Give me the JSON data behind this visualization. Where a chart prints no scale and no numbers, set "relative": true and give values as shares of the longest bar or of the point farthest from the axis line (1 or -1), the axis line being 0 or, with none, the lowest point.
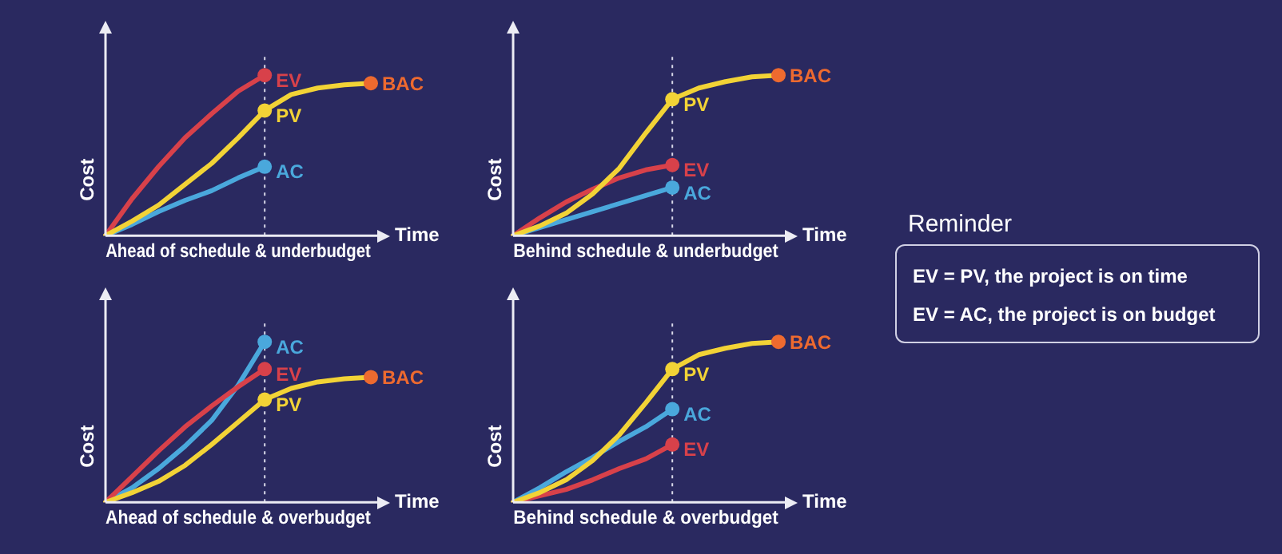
{
  "chart_data": [
    {
      "type": "line",
      "title": "Ahead of schedule & underbudget",
      "xlabel": "Time",
      "ylabel": "Cost",
      "relative": true,
      "categories": [
        null,
        null,
        null,
        null,
        null,
        null,
        null,
        null,
        null,
        null,
        null
      ],
      "annotations": [
        "BAC"
      ],
      "series": [
        {
          "name": "PV",
          "color": "#f2d336",
          "values": [
            0,
            0.09,
            0.19,
            0.32,
            0.45,
            0.61,
            0.78,
            0.88,
            0.92,
            0.94,
            0.95
          ]
        },
        {
          "name": "EV",
          "color": "#d8414a",
          "values": [
            0,
            0.23,
            0.43,
            0.61,
            0.76,
            0.9,
            1,
            null,
            null,
            null,
            null
          ]
        },
        {
          "name": "AC",
          "color": "#4aa8dc",
          "values": [
            0,
            0.07,
            0.15,
            0.22,
            0.28,
            0.36,
            0.43,
            null,
            null,
            null,
            null
          ]
        }
      ]
    },
    {
      "type": "line",
      "title": "Behind schedule & underbudget",
      "xlabel": "Time",
      "ylabel": "Cost",
      "relative": true,
      "categories": [
        null,
        null,
        null,
        null,
        null,
        null,
        null,
        null,
        null,
        null,
        null
      ],
      "annotations": [
        "BAC"
      ],
      "series": [
        {
          "name": "PV",
          "color": "#f2d336",
          "values": [
            0,
            0.06,
            0.14,
            0.26,
            0.42,
            0.64,
            0.85,
            0.92,
            0.96,
            0.99,
            1
          ]
        },
        {
          "name": "EV",
          "color": "#d8414a",
          "values": [
            0,
            0.11,
            0.21,
            0.29,
            0.36,
            0.41,
            0.44,
            null,
            null,
            null,
            null
          ]
        },
        {
          "name": "AC",
          "color": "#4aa8dc",
          "values": [
            0,
            0.05,
            0.1,
            0.15,
            0.2,
            0.25,
            0.3,
            null,
            null,
            null,
            null
          ]
        }
      ]
    },
    {
      "type": "line",
      "title": "Ahead of schedule & overbudget",
      "xlabel": "Time",
      "ylabel": "Cost",
      "relative": true,
      "categories": [
        null,
        null,
        null,
        null,
        null,
        null,
        null,
        null,
        null,
        null,
        null
      ],
      "annotations": [
        "BAC"
      ],
      "series": [
        {
          "name": "PV",
          "color": "#f2d336",
          "values": [
            0,
            0.06,
            0.13,
            0.23,
            0.36,
            0.5,
            0.64,
            0.71,
            0.75,
            0.77,
            0.78
          ]
        },
        {
          "name": "EV",
          "color": "#d8414a",
          "values": [
            0,
            0.16,
            0.32,
            0.47,
            0.6,
            0.72,
            0.83,
            null,
            null,
            null,
            null
          ]
        },
        {
          "name": "AC",
          "color": "#4aa8dc",
          "values": [
            0,
            0.09,
            0.21,
            0.35,
            0.51,
            0.73,
            1,
            null,
            null,
            null,
            null
          ]
        }
      ]
    },
    {
      "type": "line",
      "title": "Behind schedule & overbudget",
      "xlabel": "Time",
      "ylabel": "Cost",
      "relative": true,
      "categories": [
        null,
        null,
        null,
        null,
        null,
        null,
        null,
        null,
        null,
        null,
        null
      ],
      "annotations": [
        "BAC"
      ],
      "series": [
        {
          "name": "PV",
          "color": "#f2d336",
          "values": [
            0,
            0.06,
            0.14,
            0.26,
            0.42,
            0.62,
            0.83,
            0.92,
            0.96,
            0.99,
            1
          ]
        },
        {
          "name": "EV",
          "color": "#d8414a",
          "values": [
            0,
            0.04,
            0.08,
            0.14,
            0.21,
            0.27,
            0.36,
            null,
            null,
            null,
            null
          ]
        },
        {
          "name": "AC",
          "color": "#4aa8dc",
          "values": [
            0,
            0.09,
            0.19,
            0.28,
            0.38,
            0.47,
            0.58,
            null,
            null,
            null,
            null
          ]
        }
      ]
    },
    {
      "type": "other",
      "title": "Reminder",
      "annotations": [
        "EV = PV, the project is on time",
        "EV = AC, the project is on budget"
      ]
    }
  ]
}
